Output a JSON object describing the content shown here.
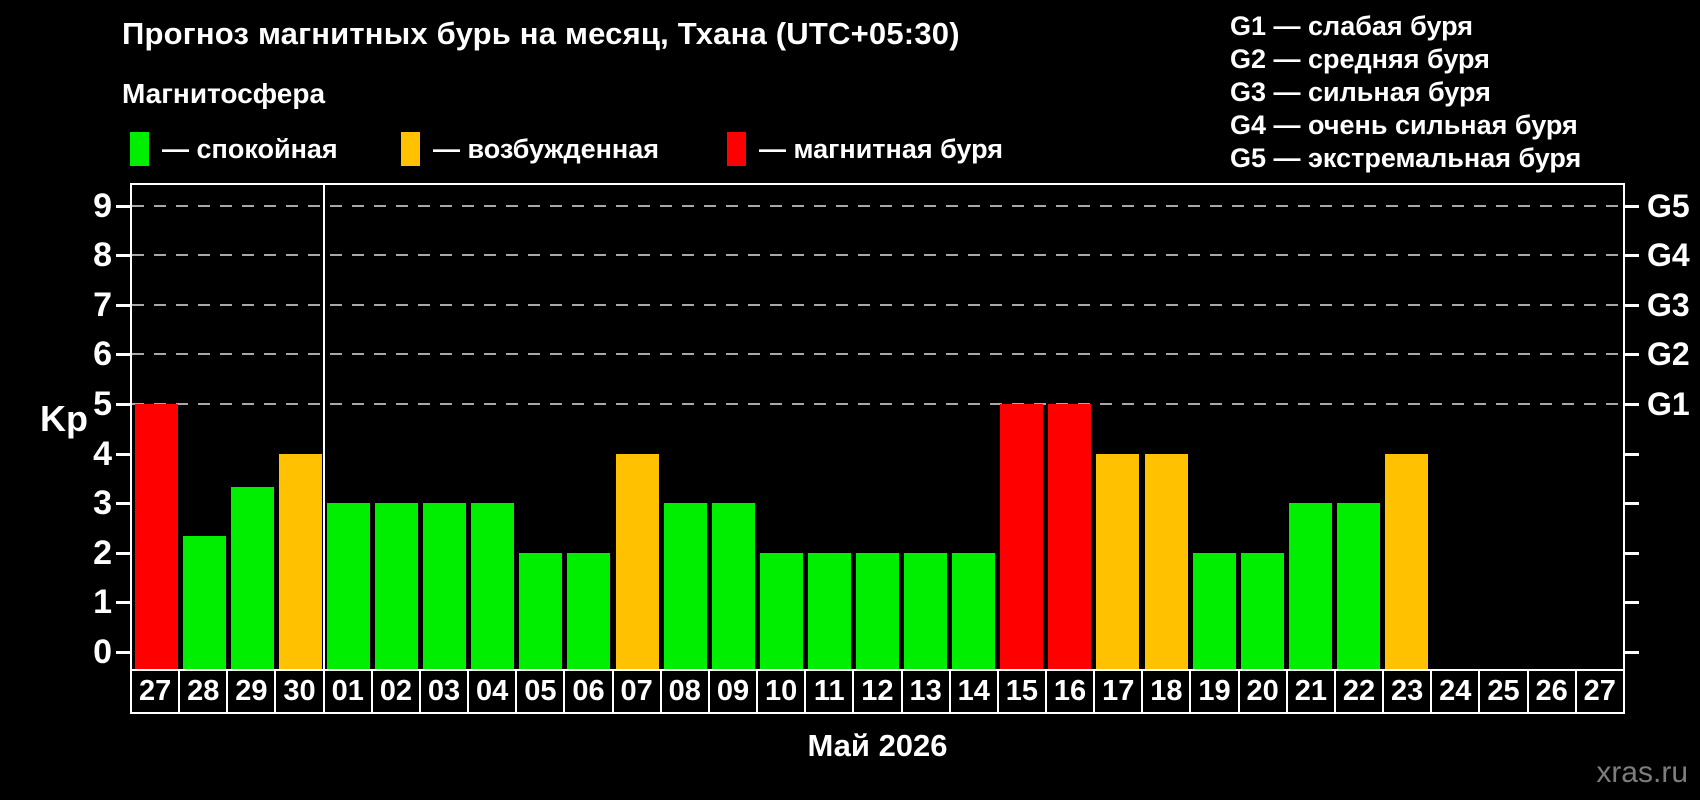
{
  "header": {
    "title": "Прогноз магнитных бурь на месяц, Тхана (UTC+05:30)",
    "subtitle": "Магнитосфера"
  },
  "legend": {
    "items": [
      {
        "state": "quiet",
        "label": "— спокойная"
      },
      {
        "state": "excited",
        "label": "— возбужденная"
      },
      {
        "state": "storm",
        "label": "— магнитная буря"
      }
    ]
  },
  "g_legend": {
    "lines": [
      "G1 — слабая буря",
      "G2 — средняя буря",
      "G3 — сильная буря",
      "G4 — очень сильная буря",
      "G5 — экстремальная буря"
    ]
  },
  "axis": {
    "y_label": "Kp",
    "y_ticks": [
      0,
      1,
      2,
      3,
      4,
      5,
      6,
      7,
      8,
      9
    ],
    "right_labels": [
      {
        "value": 5,
        "label": "G1"
      },
      {
        "value": 6,
        "label": "G2"
      },
      {
        "value": 7,
        "label": "G3"
      },
      {
        "value": 8,
        "label": "G4"
      },
      {
        "value": 9,
        "label": "G5"
      }
    ],
    "month_label": "Май 2026"
  },
  "watermark": "xras.ru",
  "chart_data": {
    "type": "bar",
    "title": "Прогноз магнитных бурь на месяц, Тхана (UTC+05:30)",
    "categories": [
      "27",
      "28",
      "29",
      "30",
      "01",
      "02",
      "03",
      "04",
      "05",
      "06",
      "07",
      "08",
      "09",
      "10",
      "11",
      "12",
      "13",
      "14",
      "15",
      "16",
      "17",
      "18",
      "19",
      "20",
      "21",
      "22",
      "23",
      "24",
      "25",
      "26",
      "27"
    ],
    "values": [
      5,
      2.33,
      3.33,
      4,
      3,
      3,
      3,
      3,
      2,
      2,
      4,
      3,
      3,
      2,
      2,
      2,
      2,
      2,
      5,
      5,
      4,
      4,
      2,
      2,
      3,
      3,
      4,
      null,
      null,
      null,
      null
    ],
    "states": [
      "storm",
      "quiet",
      "quiet",
      "excited",
      "quiet",
      "quiet",
      "quiet",
      "quiet",
      "quiet",
      "quiet",
      "excited",
      "quiet",
      "quiet",
      "quiet",
      "quiet",
      "quiet",
      "quiet",
      "quiet",
      "storm",
      "storm",
      "excited",
      "excited",
      "quiet",
      "quiet",
      "quiet",
      "quiet",
      "excited",
      null,
      null,
      null,
      null
    ],
    "state_colors": {
      "quiet": "#00ee00",
      "excited": "#ffc100",
      "storm": "#ff0000"
    },
    "xlabel": "Май 2026",
    "ylabel": "Kp",
    "ylim": [
      -0.34,
      9.44
    ],
    "grid": "dashed",
    "gridlines_at": [
      5,
      6,
      7,
      8,
      9
    ],
    "month_separator_after_index": 3,
    "legend_position": "top"
  }
}
